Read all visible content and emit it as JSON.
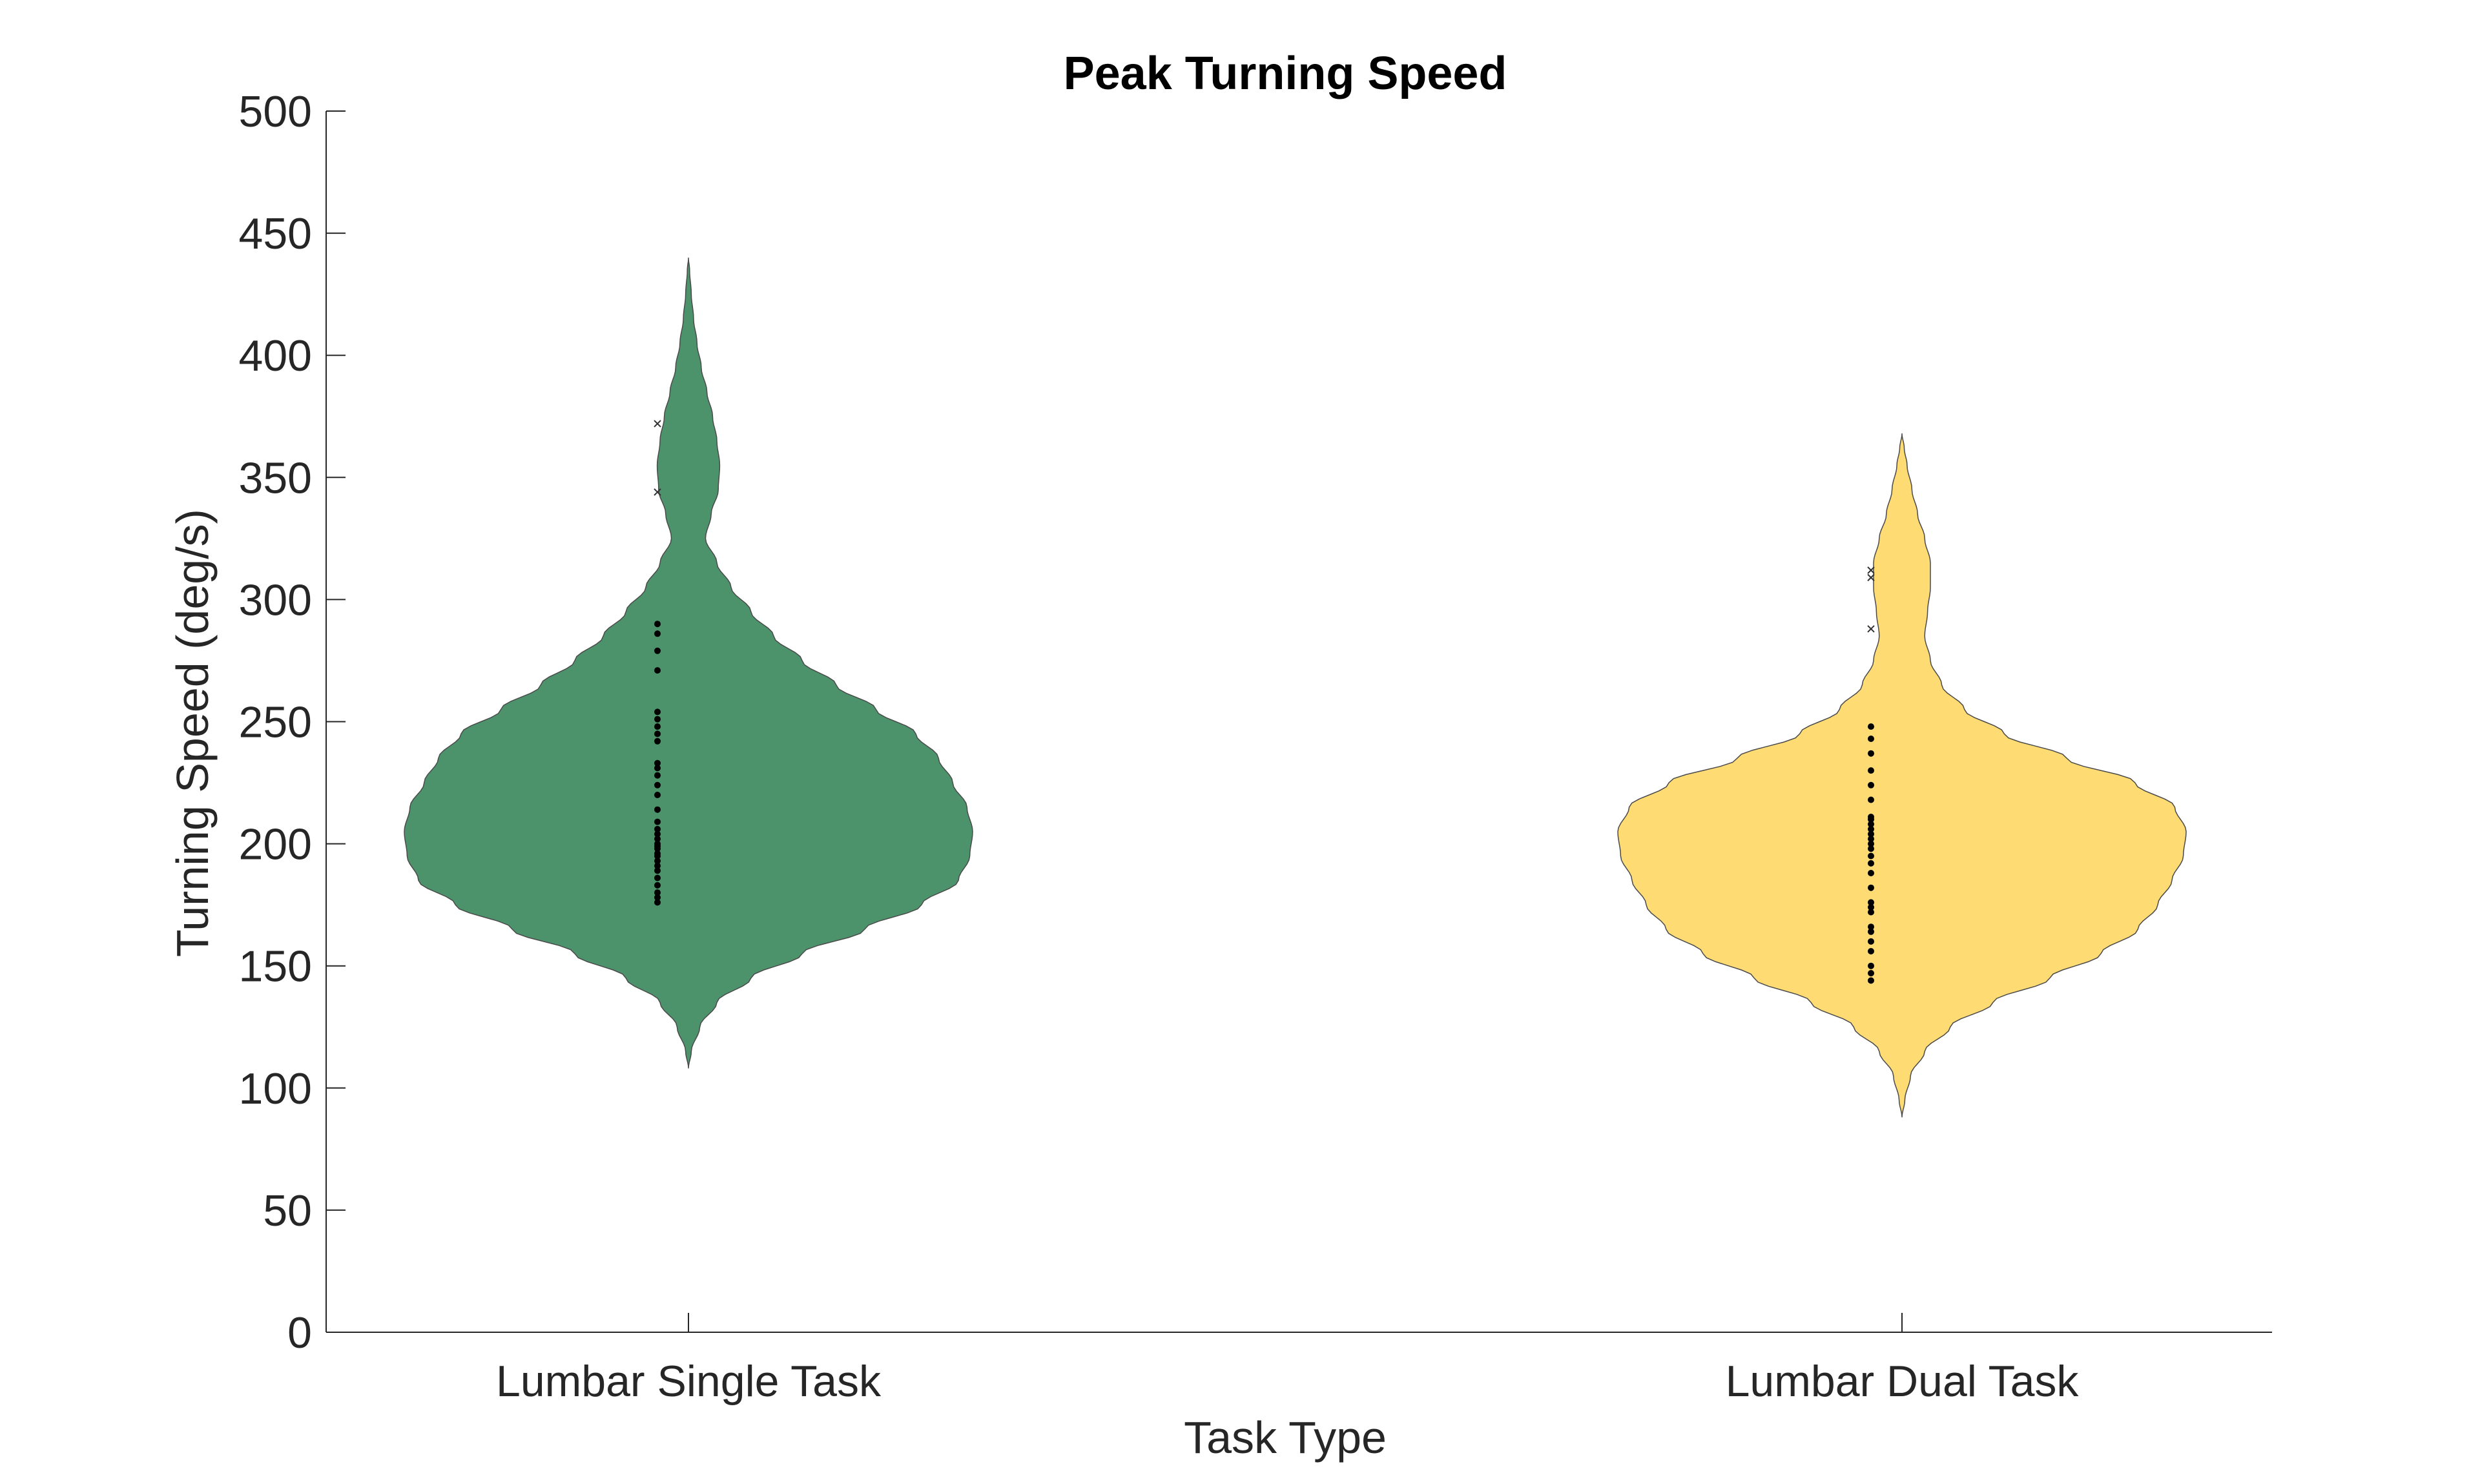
{
  "chart_data": {
    "type": "violin",
    "title": "Peak Turning Speed",
    "xlabel": "Task Type",
    "ylabel": "Turning Speed (deg/s)",
    "ylim": [
      0,
      500
    ],
    "yticks": [
      "0",
      "50",
      "100",
      "150",
      "200",
      "250",
      "300",
      "350",
      "400",
      "450",
      "500"
    ],
    "categories": [
      "Lumbar Single Task",
      "Lumbar Dual Task"
    ],
    "grid": false,
    "series": [
      {
        "category": "Lumbar Single Task",
        "color": "#4c936c",
        "range": [
          108,
          440
        ],
        "density": [
          [
            108,
            0.0
          ],
          [
            115,
            0.01
          ],
          [
            125,
            0.04
          ],
          [
            135,
            0.1
          ],
          [
            145,
            0.22
          ],
          [
            155,
            0.4
          ],
          [
            165,
            0.62
          ],
          [
            175,
            0.82
          ],
          [
            185,
            0.95
          ],
          [
            195,
            0.99
          ],
          [
            205,
            1.0
          ],
          [
            215,
            0.98
          ],
          [
            225,
            0.93
          ],
          [
            235,
            0.88
          ],
          [
            245,
            0.8
          ],
          [
            255,
            0.66
          ],
          [
            265,
            0.52
          ],
          [
            275,
            0.4
          ],
          [
            285,
            0.3
          ],
          [
            295,
            0.22
          ],
          [
            305,
            0.15
          ],
          [
            315,
            0.1
          ],
          [
            325,
            0.06
          ],
          [
            335,
            0.08
          ],
          [
            345,
            0.105
          ],
          [
            355,
            0.11
          ],
          [
            365,
            0.1
          ],
          [
            375,
            0.085
          ],
          [
            385,
            0.065
          ],
          [
            395,
            0.045
          ],
          [
            405,
            0.03
          ],
          [
            415,
            0.018
          ],
          [
            425,
            0.01
          ],
          [
            435,
            0.004
          ],
          [
            440,
            0.0
          ]
        ],
        "points": [
          176,
          178,
          180,
          183,
          186,
          189,
          191,
          193,
          195,
          196,
          198,
          199,
          200,
          202,
          204,
          206,
          209,
          214,
          220,
          224,
          228,
          231,
          233,
          242,
          245,
          248,
          251,
          254,
          271,
          279,
          286,
          290
        ],
        "outliers": [
          344,
          372
        ]
      },
      {
        "category": "Lumbar Dual Task",
        "color": "#fedc73",
        "range": [
          88,
          368
        ],
        "density": [
          [
            88,
            0.0
          ],
          [
            95,
            0.01
          ],
          [
            105,
            0.03
          ],
          [
            115,
            0.08
          ],
          [
            125,
            0.17
          ],
          [
            135,
            0.32
          ],
          [
            145,
            0.52
          ],
          [
            155,
            0.7
          ],
          [
            165,
            0.83
          ],
          [
            175,
            0.9
          ],
          [
            185,
            0.95
          ],
          [
            195,
            0.99
          ],
          [
            205,
            1.0
          ],
          [
            215,
            0.96
          ],
          [
            225,
            0.82
          ],
          [
            235,
            0.58
          ],
          [
            245,
            0.36
          ],
          [
            255,
            0.22
          ],
          [
            265,
            0.14
          ],
          [
            275,
            0.1
          ],
          [
            285,
            0.08
          ],
          [
            295,
            0.09
          ],
          [
            305,
            0.1
          ],
          [
            315,
            0.1
          ],
          [
            325,
            0.08
          ],
          [
            335,
            0.055
          ],
          [
            345,
            0.035
          ],
          [
            355,
            0.018
          ],
          [
            362,
            0.008
          ],
          [
            368,
            0.0
          ]
        ],
        "points": [
          144,
          147,
          150,
          156,
          160,
          164,
          166,
          172,
          174,
          176,
          182,
          188,
          192,
          195,
          198,
          200,
          202,
          204,
          206,
          208,
          210,
          211,
          218,
          224,
          230,
          237,
          243,
          248
        ],
        "outliers": [
          288,
          309,
          312
        ]
      }
    ]
  }
}
